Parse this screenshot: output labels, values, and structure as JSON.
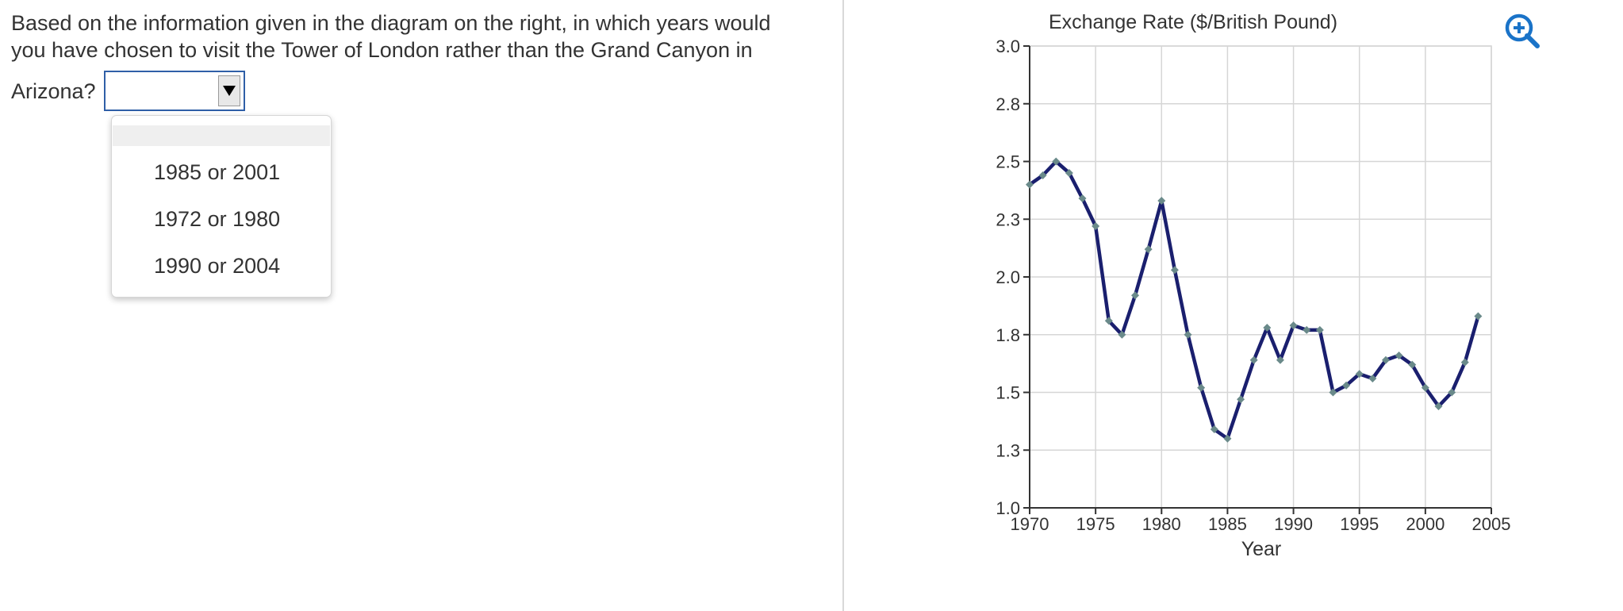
{
  "question": {
    "line1": "Based on the information given in the diagram on the right, in which years would",
    "line2": "you have chosen to visit the Tower of London rather than the Grand Canyon in",
    "line3": "Arizona?"
  },
  "dropdown": {
    "selected_value": "",
    "options": [
      "1985 or 2001",
      "1972 or 1980",
      "1990 or 2004"
    ]
  },
  "zoom": {
    "icon": "zoom-in-icon",
    "color": "#1a73c8"
  },
  "chart_data": {
    "type": "line",
    "title": "Exchange Rate ($/British Pound)",
    "xlabel": "Year",
    "ylabel": "",
    "xlim": [
      1970,
      2005
    ],
    "ylim": [
      1.0,
      3.0
    ],
    "x_ticks": [
      1970,
      1975,
      1980,
      1985,
      1990,
      1995,
      2000,
      2005
    ],
    "y_ticks": [
      1.0,
      1.25,
      1.5,
      1.75,
      2.0,
      2.25,
      2.5,
      2.75,
      3.0
    ],
    "y_tick_labels": [
      "1.0",
      "1.3",
      "1.5",
      "1.8",
      "2.0",
      "2.3",
      "2.5",
      "2.8",
      "3.0"
    ],
    "grid": true,
    "line_color": "#1a1f6e",
    "marker_color": "#6a8a8a",
    "series": [
      {
        "x": [
          1970,
          1971,
          1972,
          1973,
          1974,
          1975,
          1976,
          1977,
          1978,
          1979,
          1980,
          1981,
          1982,
          1983,
          1984,
          1985,
          1986,
          1987,
          1988,
          1989,
          1990,
          1991,
          1992,
          1993,
          1994,
          1995,
          1996,
          1997,
          1998,
          1999,
          2000,
          2001,
          2002,
          2003,
          2004
        ],
        "values": [
          2.4,
          2.44,
          2.5,
          2.45,
          2.34,
          2.22,
          1.81,
          1.75,
          1.92,
          2.12,
          2.33,
          2.03,
          1.75,
          1.52,
          1.34,
          1.3,
          1.47,
          1.64,
          1.78,
          1.64,
          1.79,
          1.77,
          1.77,
          1.5,
          1.53,
          1.58,
          1.56,
          1.64,
          1.66,
          1.62,
          1.52,
          1.44,
          1.5,
          1.63,
          1.83
        ]
      }
    ]
  }
}
